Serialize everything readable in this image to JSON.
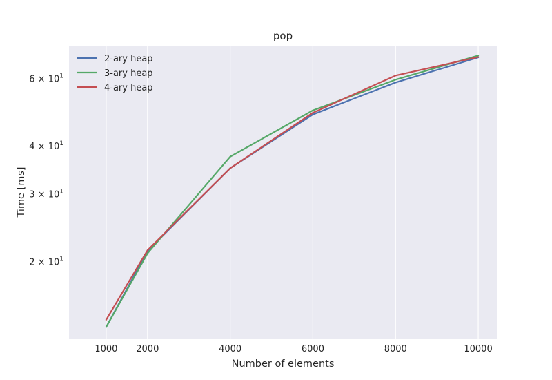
{
  "chart_data": {
    "type": "line",
    "title": "pop",
    "xlabel": "Number of elements",
    "ylabel": "Time [ms]",
    "x": [
      1000,
      2000,
      4000,
      6000,
      8000,
      10000
    ],
    "xticks": [
      1000,
      2000,
      4000,
      6000,
      8000,
      10000
    ],
    "xlim": [
      100,
      10450
    ],
    "y_scale": "log",
    "ylim": [
      12.6,
      73.0
    ],
    "yticks": [
      {
        "value": 20,
        "mantissa": "2",
        "base": "10",
        "exp": "1"
      },
      {
        "value": 30,
        "mantissa": "3",
        "base": "10",
        "exp": "1"
      },
      {
        "value": 40,
        "mantissa": "4",
        "base": "10",
        "exp": "1"
      },
      {
        "value": 60,
        "mantissa": "6",
        "base": "10",
        "exp": "1"
      }
    ],
    "times_sign": "×",
    "grid": true,
    "legend_position": "top-left",
    "series": [
      {
        "name": "2-ary heap",
        "color": "#4c72b0",
        "values": [
          13.5,
          21.3,
          35.0,
          48.3,
          58.5,
          68.0
        ]
      },
      {
        "name": "3-ary heap",
        "color": "#55a868",
        "values": [
          13.5,
          21.0,
          37.5,
          49.5,
          59.5,
          68.8
        ]
      },
      {
        "name": "4-ary heap",
        "color": "#c44e52",
        "values": [
          14.1,
          21.4,
          35.0,
          48.8,
          61.0,
          68.2
        ]
      }
    ]
  }
}
